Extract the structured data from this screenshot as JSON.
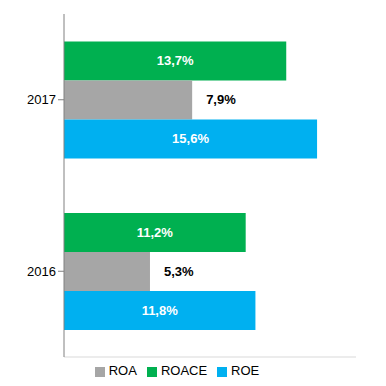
{
  "chart_data": {
    "type": "bar",
    "orientation": "horizontal",
    "categories": [
      "2017",
      "2016"
    ],
    "series": [
      {
        "name": "ROACE",
        "color": "#00b050",
        "values": [
          13.7,
          11.2
        ],
        "value_labels": [
          "13,7%",
          "11,2%"
        ]
      },
      {
        "name": "ROA",
        "color": "#a6a6a6",
        "values": [
          7.9,
          5.3
        ],
        "value_labels": [
          "7,9%",
          "5,3%"
        ]
      },
      {
        "name": "ROE",
        "color": "#00b0f0",
        "values": [
          15.6,
          11.8
        ],
        "value_labels": [
          "15,6%",
          "11,8%"
        ]
      }
    ],
    "xlim": [
      0,
      18
    ],
    "data_labels": true,
    "tick_labels": "y",
    "grid": false,
    "legend": "bottom"
  }
}
